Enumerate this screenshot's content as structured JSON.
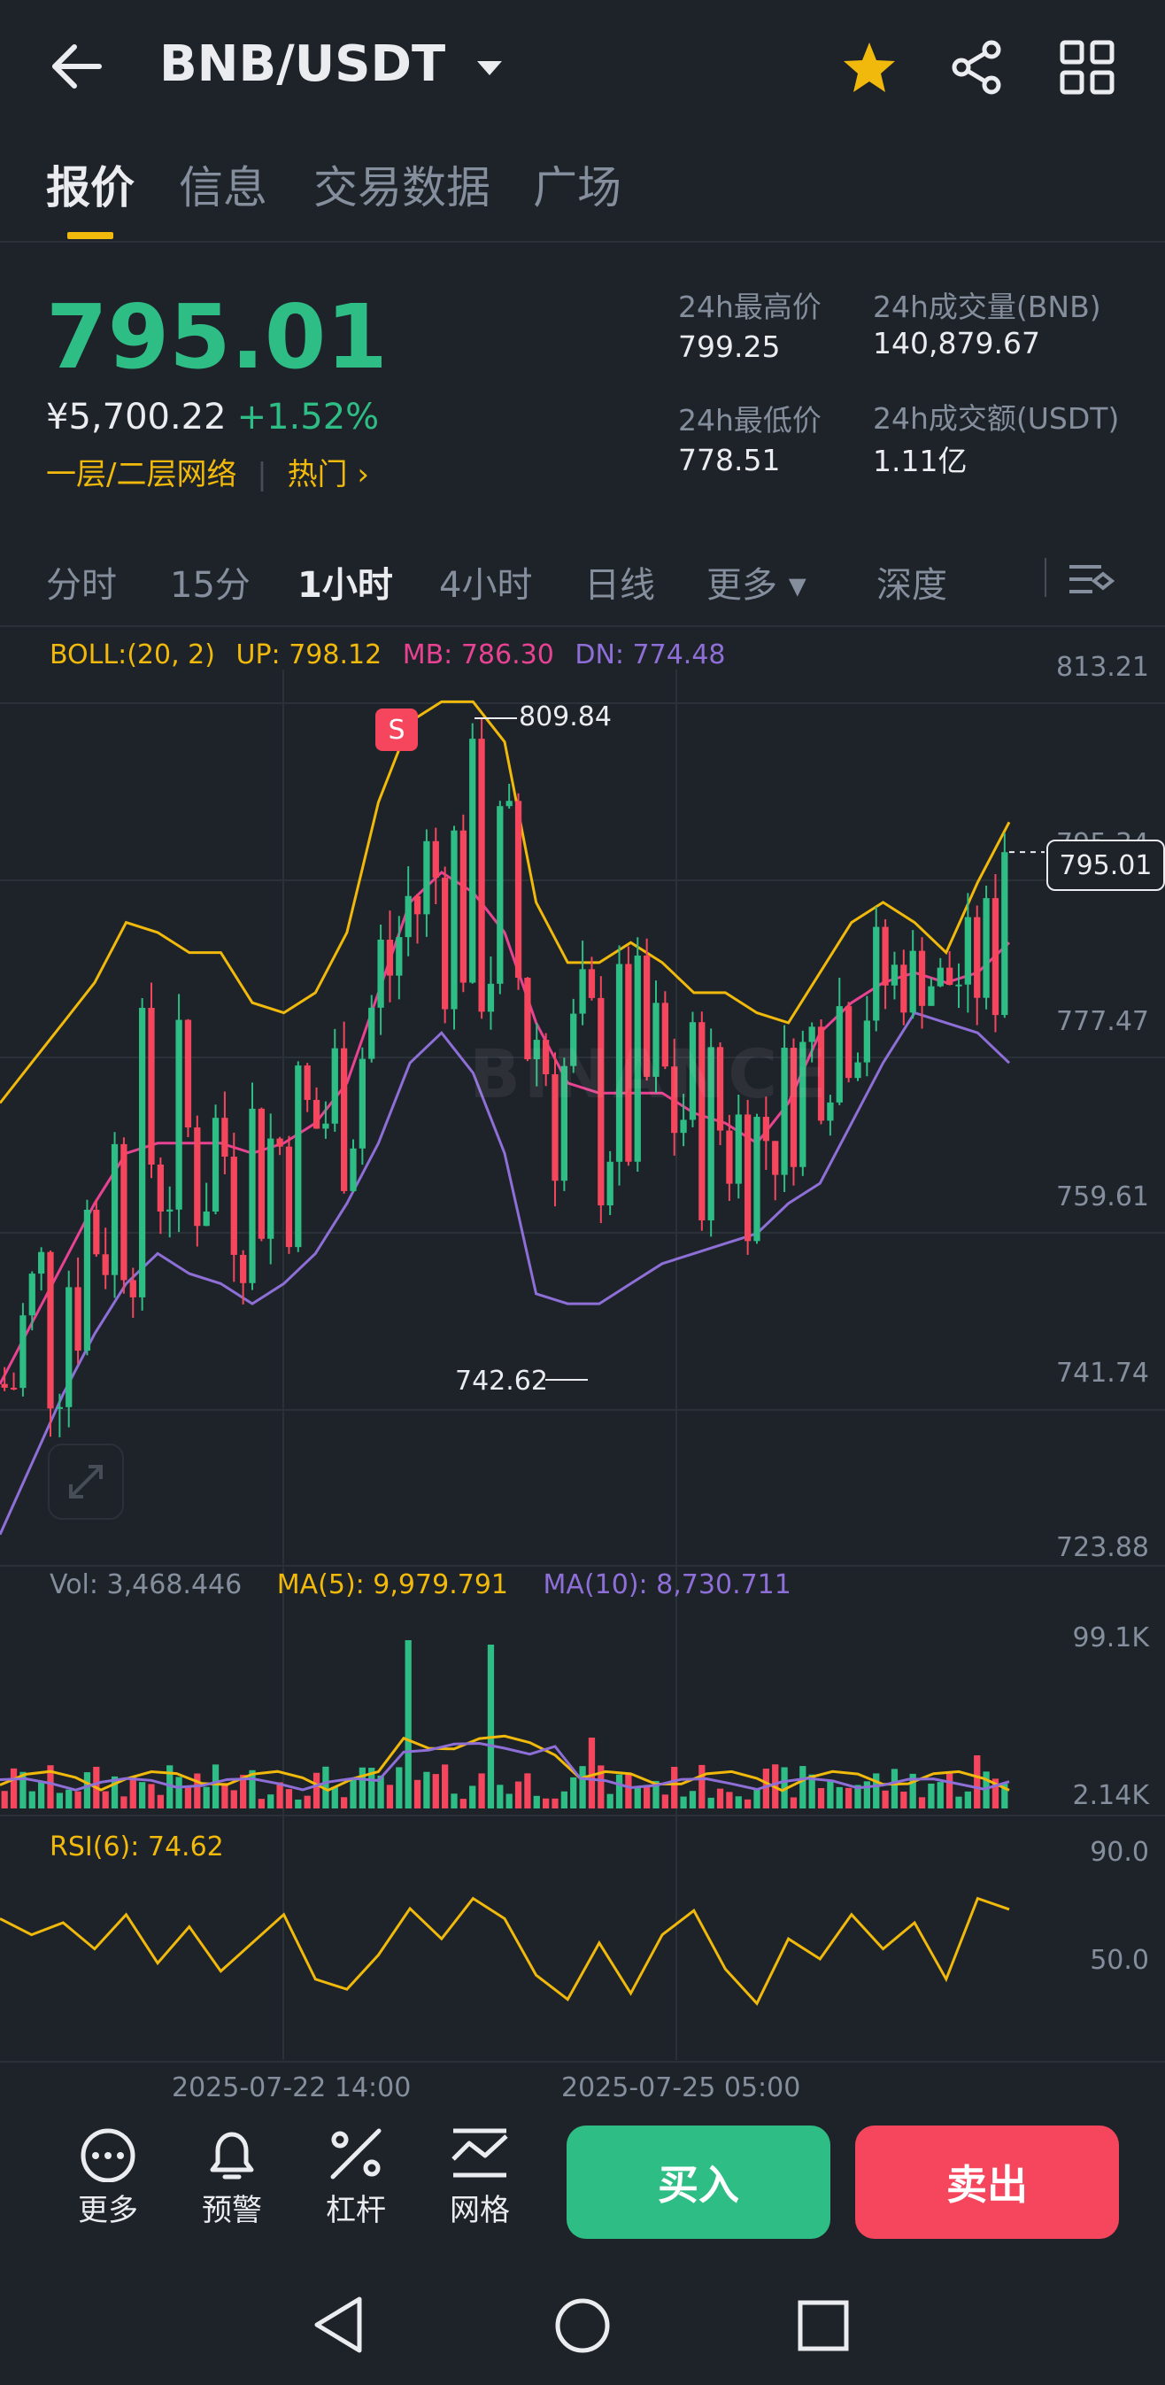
{
  "header": {
    "back_icon": "arrow-left-icon",
    "pair": "BNB/USDT",
    "star_icon": "star-icon",
    "share_icon": "share-icon",
    "grid_icon": "grid-icon",
    "accent": "#f0b90b"
  },
  "tabs": [
    "报价",
    "信息",
    "交易数据",
    "广场"
  ],
  "quote": {
    "price": "795.01",
    "cny": "¥5,700.22",
    "change": "+1.52%",
    "network": "一层/二层网络",
    "hot": "热门 ›",
    "up_color": "#2ebd85",
    "down_color": "#f6465d"
  },
  "stats": {
    "high_label": "24h最高价",
    "high": "799.25",
    "low_label": "24h最低价",
    "low": "778.51",
    "vol_bnb_label": "24h成交量(BNB)",
    "vol_bnb": "140,879.67",
    "vol_usdt_label": "24h成交额(USDT)",
    "vol_usdt": "1.11亿"
  },
  "timeframes": [
    "分时",
    "15分",
    "1小时",
    "4小时",
    "日线",
    "更多 ▾",
    "深度"
  ],
  "timeframe_active": "1小时",
  "boll": {
    "label": "BOLL:(20, 2)",
    "up": "UP: 798.12",
    "mb": "MB: 786.30",
    "dn": "DN: 774.48"
  },
  "vol_ind": {
    "label": "Vol: 3,468.446",
    "ma5": "MA(5): 9,979.791",
    "ma10": "MA(10): 8,730.711"
  },
  "rsi": {
    "label": "RSI(6): 74.62"
  },
  "chart_data": {
    "type": "line",
    "price_axis_ticks": [
      "813.21",
      "795.34",
      "777.47",
      "759.61",
      "741.74",
      "723.88"
    ],
    "volume_axis_ticks": [
      "99.1K",
      "2.14K"
    ],
    "rsi_axis_ticks": [
      "90.0",
      "50.0"
    ],
    "x_tick_labels": [
      "2025-07-22 14:00",
      "2025-07-25 05:00"
    ],
    "current_price": "795.01",
    "high_marker": "809.84",
    "low_marker": "742.62",
    "sell_marker": "S",
    "watermark": "BINANCE",
    "series": [
      {
        "name": "UP",
        "color": "#f0b90b",
        "values": [
          770,
          774,
          778,
          782,
          788,
          787,
          785,
          785,
          780,
          779,
          781,
          787,
          800,
          808,
          810,
          810,
          806,
          790,
          784,
          784,
          786,
          784,
          781,
          781,
          779,
          778,
          783,
          788,
          790,
          788,
          785,
          792,
          798
        ]
      },
      {
        "name": "MB",
        "color": "#e84393",
        "values": [
          742,
          748,
          754,
          760,
          765,
          766,
          766,
          766,
          765,
          766,
          768,
          772,
          781,
          790,
          793,
          791,
          787,
          778,
          772,
          771,
          771,
          771,
          769,
          768,
          766,
          770,
          777,
          780,
          782,
          783,
          782,
          783,
          786
        ]
      },
      {
        "name": "DN",
        "color": "#8e6fd8",
        "values": [
          727,
          734,
          741,
          747,
          752,
          755,
          753,
          752,
          750,
          752,
          755,
          760,
          766,
          774,
          777,
          773,
          765,
          751,
          750,
          750,
          752,
          754,
          755,
          756,
          757,
          760,
          762,
          768,
          774,
          779,
          778,
          777,
          774
        ]
      },
      {
        "name": "RSI(6)",
        "color": "#f0b90b",
        "values": [
          70,
          62,
          68,
          55,
          72,
          48,
          66,
          44,
          58,
          72,
          40,
          35,
          52,
          75,
          60,
          80,
          70,
          42,
          30,
          58,
          33,
          62,
          74,
          45,
          28,
          60,
          50,
          72,
          55,
          68,
          40,
          80,
          74.62
        ]
      }
    ],
    "candles": {
      "count": 110,
      "last_close": 795.01,
      "volume_max": "99.1K"
    }
  },
  "bottom": {
    "more": "更多",
    "alert": "预警",
    "leverage": "杠杆",
    "grid": "网格",
    "buy": "买入",
    "sell": "卖出",
    "more_icon": "more-icon",
    "bell_icon": "bell-icon",
    "leverage_icon": "leverage-icon",
    "grid_bot_icon": "grid-bot-icon",
    "buy_color": "#2ebd85",
    "sell_color": "#f6465d"
  },
  "nav": {
    "back_icon": "nav-back-icon",
    "home_icon": "nav-home-icon",
    "recent_icon": "nav-recent-icon"
  }
}
